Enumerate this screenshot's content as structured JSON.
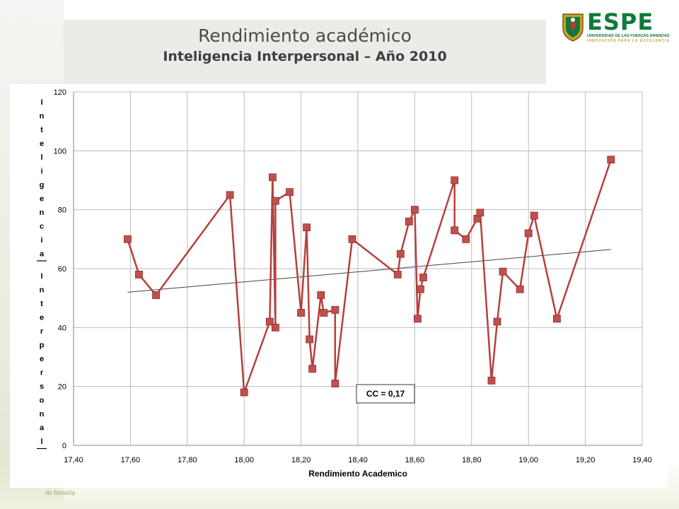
{
  "header": {
    "title": "Rendimiento académico",
    "subtitle": "Inteligencia  Interpersonal – Año 2010"
  },
  "logo": {
    "name": "ESPE",
    "line1": "UNIVERSIDAD DE LAS FUERZAS ARMADAS",
    "line2": "INNOVACIÓN PARA LA EXCELENCIA",
    "color": "#0f7a3c"
  },
  "footer": {
    "watermark": "de historia"
  },
  "chart_data": {
    "type": "line",
    "xlabel": "Rendimiento Academico",
    "ylabel": "Inteligencia Interpersonal",
    "xlim": [
      17.4,
      19.4
    ],
    "ylim": [
      0,
      120
    ],
    "x_ticks": [
      "17,40",
      "17,60",
      "17,80",
      "18,00",
      "18,20",
      "18,40",
      "18,60",
      "18,80",
      "19,00",
      "19,20",
      "19,40"
    ],
    "y_ticks": [
      "0",
      "20",
      "40",
      "60",
      "80",
      "100",
      "120"
    ],
    "grid": true,
    "series_color": "#b5403e",
    "marker_color": "#c0504d",
    "trend_color": "#444444",
    "annotation": "CC = 0,17",
    "series": [
      {
        "x": [
          17.59,
          17.63,
          17.69,
          17.95,
          18.0,
          18.09,
          18.1,
          18.11,
          18.11,
          18.16,
          18.2,
          18.22,
          18.23,
          18.24,
          18.27,
          18.28,
          18.32,
          18.32,
          18.38,
          18.54,
          18.55,
          18.58,
          18.6,
          18.61,
          18.62,
          18.63,
          18.74,
          18.74,
          18.78,
          18.82,
          18.83,
          18.87,
          18.89,
          18.91,
          18.97,
          19.0,
          19.02,
          19.1,
          19.29
        ],
        "y": [
          70,
          58,
          51,
          85,
          18,
          42,
          91,
          40,
          83,
          86,
          45,
          74,
          36,
          26,
          51,
          45,
          46,
          21,
          70,
          58,
          65,
          76,
          80,
          43,
          53,
          57,
          90,
          73,
          70,
          77,
          79,
          22,
          42,
          59,
          53,
          72,
          78,
          43,
          97
        ]
      }
    ],
    "trendline": {
      "x": [
        17.59,
        19.29
      ],
      "y": [
        52,
        66.5
      ]
    }
  }
}
